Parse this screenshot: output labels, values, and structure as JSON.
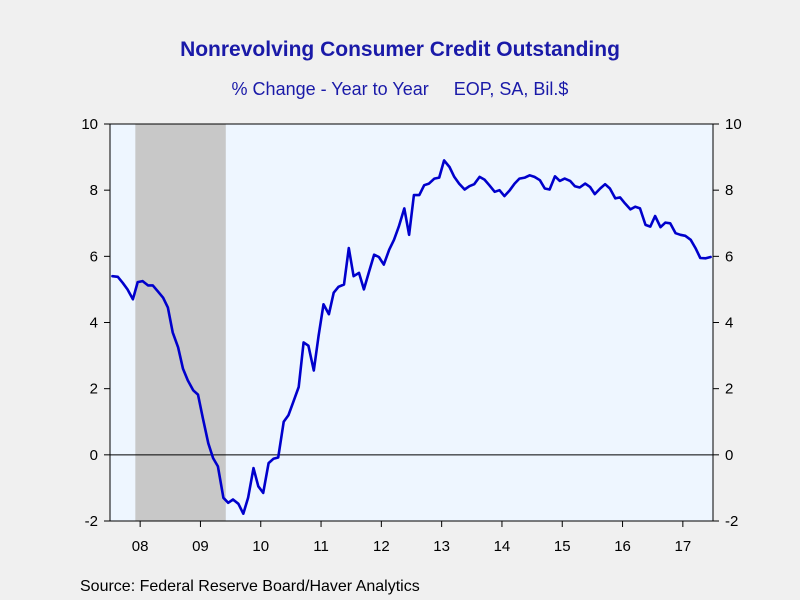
{
  "chart_data": {
    "type": "line",
    "title": "Nonrevolving Consumer Credit Outstanding",
    "subtitle": "% Change - Year to Year     EOP, SA, Bil.$",
    "xlabel": "",
    "ylabel": "",
    "ylim": [
      -2,
      10
    ],
    "yticks": [
      -2,
      0,
      2,
      4,
      6,
      8,
      10
    ],
    "xlim": [
      2007.5,
      2017.5
    ],
    "x_tick_labels": [
      "08",
      "09",
      "10",
      "11",
      "12",
      "13",
      "14",
      "15",
      "16",
      "17"
    ],
    "grid": false,
    "zero_line": true,
    "recession_shading": [
      2007.92,
      2009.42
    ],
    "series": [
      {
        "color": "#0000cc",
        "points": [
          [
            2007.54,
            5.4
          ],
          [
            2007.63,
            5.38
          ],
          [
            2007.71,
            5.2
          ],
          [
            2007.79,
            5.0
          ],
          [
            2007.88,
            4.7
          ],
          [
            2007.96,
            5.22
          ],
          [
            2008.04,
            5.25
          ],
          [
            2008.13,
            5.12
          ],
          [
            2008.21,
            5.12
          ],
          [
            2008.29,
            4.95
          ],
          [
            2008.38,
            4.75
          ],
          [
            2008.46,
            4.45
          ],
          [
            2008.54,
            3.7
          ],
          [
            2008.63,
            3.25
          ],
          [
            2008.71,
            2.6
          ],
          [
            2008.79,
            2.25
          ],
          [
            2008.88,
            1.95
          ],
          [
            2008.96,
            1.82
          ],
          [
            2009.04,
            1.1
          ],
          [
            2009.13,
            0.35
          ],
          [
            2009.21,
            -0.1
          ],
          [
            2009.29,
            -0.35
          ],
          [
            2009.38,
            -1.3
          ],
          [
            2009.46,
            -1.45
          ],
          [
            2009.54,
            -1.35
          ],
          [
            2009.63,
            -1.48
          ],
          [
            2009.71,
            -1.78
          ],
          [
            2009.79,
            -1.3
          ],
          [
            2009.88,
            -0.4
          ],
          [
            2009.96,
            -0.95
          ],
          [
            2010.04,
            -1.15
          ],
          [
            2010.13,
            -0.25
          ],
          [
            2010.21,
            -0.12
          ],
          [
            2010.29,
            -0.08
          ],
          [
            2010.38,
            1.0
          ],
          [
            2010.46,
            1.2
          ],
          [
            2010.54,
            1.6
          ],
          [
            2010.63,
            2.05
          ],
          [
            2010.71,
            3.4
          ],
          [
            2010.79,
            3.3
          ],
          [
            2010.88,
            2.55
          ],
          [
            2010.96,
            3.6
          ],
          [
            2011.04,
            4.55
          ],
          [
            2011.13,
            4.25
          ],
          [
            2011.21,
            4.9
          ],
          [
            2011.29,
            5.08
          ],
          [
            2011.38,
            5.15
          ],
          [
            2011.46,
            6.25
          ],
          [
            2011.54,
            5.4
          ],
          [
            2011.63,
            5.5
          ],
          [
            2011.71,
            5.0
          ],
          [
            2011.79,
            5.5
          ],
          [
            2011.88,
            6.05
          ],
          [
            2011.96,
            5.98
          ],
          [
            2012.04,
            5.75
          ],
          [
            2012.13,
            6.2
          ],
          [
            2012.21,
            6.5
          ],
          [
            2012.29,
            6.9
          ],
          [
            2012.38,
            7.45
          ],
          [
            2012.46,
            6.65
          ],
          [
            2012.54,
            7.85
          ],
          [
            2012.63,
            7.85
          ],
          [
            2012.71,
            8.15
          ],
          [
            2012.79,
            8.2
          ],
          [
            2012.88,
            8.35
          ],
          [
            2012.96,
            8.38
          ],
          [
            2013.04,
            8.9
          ],
          [
            2013.13,
            8.7
          ],
          [
            2013.21,
            8.4
          ],
          [
            2013.29,
            8.2
          ],
          [
            2013.38,
            8.02
          ],
          [
            2013.46,
            8.12
          ],
          [
            2013.54,
            8.18
          ],
          [
            2013.63,
            8.4
          ],
          [
            2013.71,
            8.32
          ],
          [
            2013.79,
            8.15
          ],
          [
            2013.88,
            7.95
          ],
          [
            2013.96,
            8.0
          ],
          [
            2014.04,
            7.82
          ],
          [
            2014.13,
            8.0
          ],
          [
            2014.21,
            8.2
          ],
          [
            2014.29,
            8.35
          ],
          [
            2014.38,
            8.38
          ],
          [
            2014.46,
            8.45
          ],
          [
            2014.54,
            8.4
          ],
          [
            2014.63,
            8.3
          ],
          [
            2014.71,
            8.05
          ],
          [
            2014.79,
            8.02
          ],
          [
            2014.88,
            8.42
          ],
          [
            2014.96,
            8.28
          ],
          [
            2015.04,
            8.35
          ],
          [
            2015.13,
            8.28
          ],
          [
            2015.21,
            8.12
          ],
          [
            2015.29,
            8.08
          ],
          [
            2015.38,
            8.2
          ],
          [
            2015.46,
            8.1
          ],
          [
            2015.54,
            7.88
          ],
          [
            2015.63,
            8.05
          ],
          [
            2015.71,
            8.18
          ],
          [
            2015.79,
            8.05
          ],
          [
            2015.88,
            7.75
          ],
          [
            2015.96,
            7.78
          ],
          [
            2016.04,
            7.6
          ],
          [
            2016.13,
            7.42
          ],
          [
            2016.21,
            7.5
          ],
          [
            2016.29,
            7.45
          ],
          [
            2016.38,
            6.95
          ],
          [
            2016.46,
            6.9
          ],
          [
            2016.54,
            7.22
          ],
          [
            2016.63,
            6.88
          ],
          [
            2016.71,
            7.02
          ],
          [
            2016.79,
            7.0
          ],
          [
            2016.88,
            6.7
          ],
          [
            2016.96,
            6.65
          ],
          [
            2017.04,
            6.62
          ],
          [
            2017.13,
            6.5
          ],
          [
            2017.21,
            6.25
          ],
          [
            2017.29,
            5.95
          ],
          [
            2017.38,
            5.94
          ],
          [
            2017.46,
            5.98
          ]
        ]
      }
    ],
    "source": "Source:  Federal Reserve Board/Haver Analytics"
  }
}
